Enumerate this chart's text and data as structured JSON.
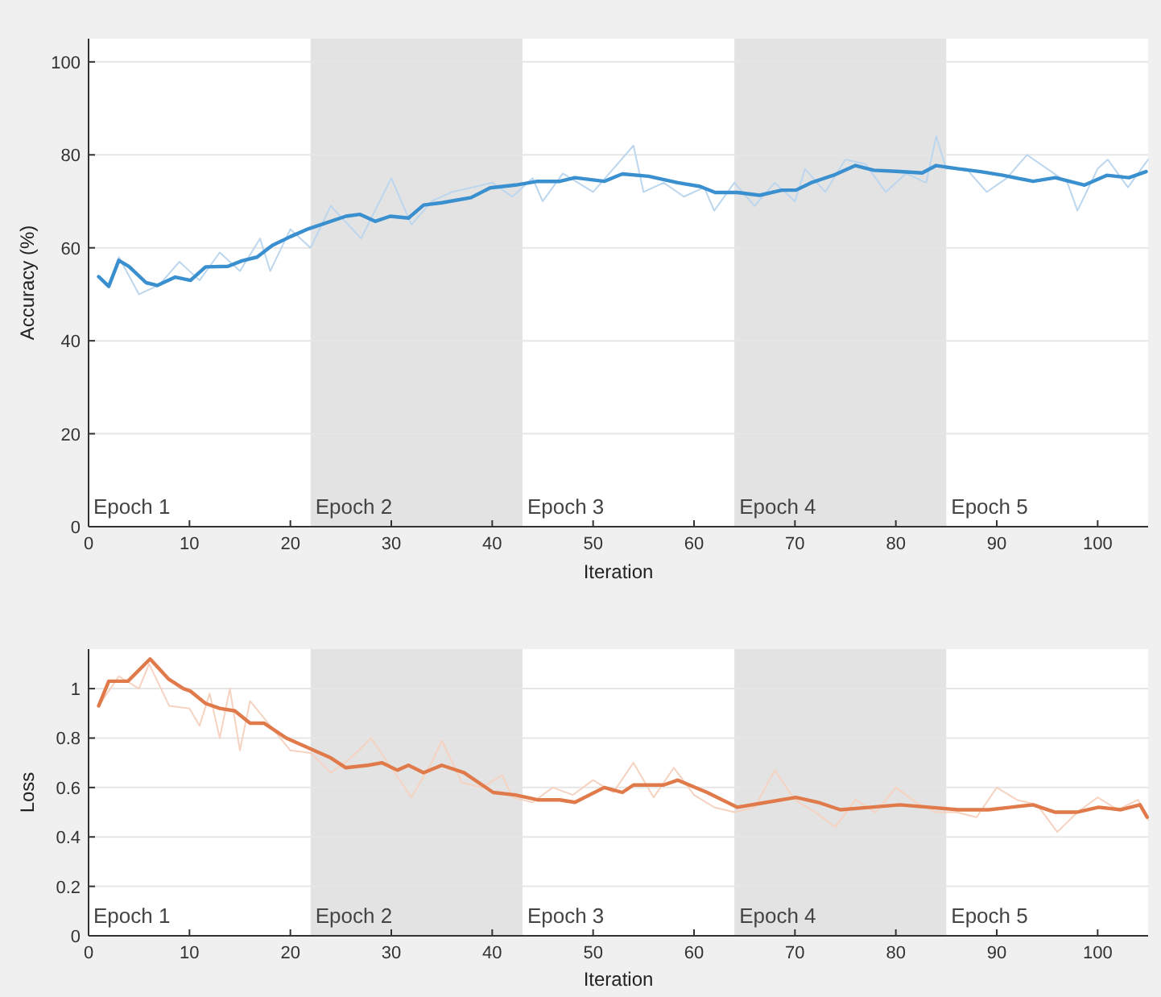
{
  "chart_data": [
    {
      "type": "line",
      "xlabel": "Iteration",
      "ylabel": "Accuracy (%)",
      "xlim": [
        0,
        105
      ],
      "ylim": [
        0,
        105
      ],
      "xticks": [
        0,
        10,
        20,
        30,
        40,
        50,
        60,
        70,
        80,
        90,
        100
      ],
      "yticks": [
        0,
        20,
        40,
        60,
        80,
        100
      ],
      "grid": "y",
      "line_style": "solid",
      "bands": [
        {
          "axis": "x",
          "from": 22,
          "to": 43,
          "label": "Epoch 2",
          "color": "#e3e3e3"
        },
        {
          "axis": "x",
          "from": 64,
          "to": 85,
          "label": "Epoch 4",
          "color": "#e3e3e3"
        }
      ],
      "annotations": [
        "Epoch 1",
        "Epoch 3",
        "Epoch 5"
      ],
      "series": [
        {
          "color": "#bcd6ee",
          "x": [
            1,
            2,
            3,
            5,
            7,
            9,
            11,
            13,
            15,
            17,
            18,
            20,
            21,
            22,
            24,
            27,
            30,
            32,
            34,
            36,
            38,
            40,
            42,
            44,
            45,
            47,
            50,
            52,
            54,
            55,
            57,
            59,
            61,
            62,
            64,
            66,
            68,
            70,
            71,
            73,
            75,
            77,
            79,
            81,
            83,
            84,
            85,
            87,
            89,
            91,
            93,
            95,
            97,
            98,
            100,
            101,
            103,
            105
          ],
          "values": [
            54,
            52,
            58,
            50,
            52,
            57,
            53,
            59,
            55,
            62,
            55,
            64,
            62,
            60,
            69,
            62,
            75,
            65,
            70,
            72,
            73,
            74,
            71,
            75,
            70,
            76,
            72,
            77,
            82,
            72,
            74,
            71,
            73,
            68,
            74,
            69,
            74,
            70,
            77,
            72,
            79,
            78,
            72,
            76,
            74,
            84,
            77,
            77,
            72,
            75,
            80,
            77,
            74,
            68,
            77,
            79,
            73,
            79
          ]
        },
        {
          "color": "#3a8fcf",
          "x": [
            1,
            2,
            3,
            4,
            5.7,
            6.8,
            8.6,
            10.1,
            11.6,
            13.8,
            15.2,
            16.7,
            18.2,
            20,
            21.8,
            25.5,
            26.9,
            28.4,
            29.9,
            31.7,
            33.2,
            35,
            37.9,
            39.8,
            42.3,
            44.5,
            46.7,
            48.2,
            51.1,
            52.9,
            55.5,
            58.4,
            60.6,
            62.1,
            64.3,
            66.5,
            68.7,
            70.1,
            71.6,
            73.8,
            76,
            77.8,
            80.4,
            82.6,
            84,
            86.2,
            88.4,
            90.6,
            93.6,
            95.8,
            98.7,
            100.9,
            103.1,
            104.8
          ],
          "values": [
            53.8,
            51.7,
            57.3,
            56,
            52.5,
            51.9,
            53.7,
            53,
            55.9,
            56,
            57.2,
            58,
            60.5,
            62.4,
            64.1,
            66.8,
            67.2,
            65.7,
            66.8,
            66.4,
            69.2,
            69.7,
            70.8,
            72.9,
            73.5,
            74.3,
            74.3,
            75.1,
            74.3,
            75.9,
            75.4,
            74,
            73.2,
            71.9,
            71.9,
            71.3,
            72.4,
            72.4,
            74,
            75.6,
            77.7,
            76.7,
            76.4,
            76.1,
            77.7,
            77,
            76.4,
            75.6,
            74.3,
            75.1,
            73.5,
            75.6,
            75.1,
            76.4
          ]
        }
      ]
    },
    {
      "type": "line",
      "xlabel": "Iteration",
      "ylabel": "Loss",
      "xlim": [
        0,
        105
      ],
      "ylim": [
        0,
        1.16
      ],
      "xticks": [
        0,
        10,
        20,
        30,
        40,
        50,
        60,
        70,
        80,
        90,
        100
      ],
      "yticks": [
        0,
        0.2,
        0.4,
        0.6,
        0.8,
        1
      ],
      "grid": "y",
      "line_style": "solid",
      "bands": [
        {
          "axis": "x",
          "from": 22,
          "to": 43,
          "label": "Epoch 2",
          "color": "#e3e3e3"
        },
        {
          "axis": "x",
          "from": 64,
          "to": 85,
          "label": "Epoch 4",
          "color": "#e3e3e3"
        }
      ],
      "annotations": [
        "Epoch 1",
        "Epoch 3",
        "Epoch 5"
      ],
      "series": [
        {
          "color": "#f6d2c0",
          "x": [
            1,
            3,
            5,
            6,
            8,
            10,
            11,
            12,
            13,
            14,
            15,
            16,
            18,
            20,
            22,
            24,
            26,
            28,
            30,
            32,
            34,
            35,
            37,
            39,
            41,
            42,
            44,
            46,
            48,
            50,
            52,
            54,
            56,
            58,
            60,
            62,
            64,
            66,
            68,
            70,
            72,
            74,
            76,
            78,
            80,
            82,
            84,
            86,
            88,
            90,
            92,
            94,
            96,
            98,
            100,
            102,
            104,
            105
          ],
          "values": [
            0.93,
            1.05,
            1.0,
            1.1,
            0.93,
            0.92,
            0.85,
            0.98,
            0.8,
            1.0,
            0.75,
            0.95,
            0.85,
            0.75,
            0.74,
            0.66,
            0.72,
            0.8,
            0.68,
            0.56,
            0.7,
            0.79,
            0.62,
            0.6,
            0.65,
            0.56,
            0.54,
            0.6,
            0.57,
            0.63,
            0.58,
            0.7,
            0.56,
            0.68,
            0.57,
            0.52,
            0.5,
            0.52,
            0.67,
            0.55,
            0.5,
            0.44,
            0.55,
            0.5,
            0.6,
            0.54,
            0.5,
            0.5,
            0.48,
            0.6,
            0.55,
            0.53,
            0.42,
            0.5,
            0.56,
            0.51,
            0.55,
            0.47
          ]
        },
        {
          "color": "#e07a4a",
          "x": [
            1,
            2,
            3.9,
            6.1,
            7.9,
            9.4,
            10.1,
            11.6,
            13,
            14.5,
            16,
            17.4,
            19.6,
            21.8,
            24,
            25.5,
            27.7,
            29.1,
            30.6,
            31.7,
            33.2,
            35,
            37.2,
            40.1,
            42.3,
            44.5,
            46.7,
            48.2,
            51.1,
            52.9,
            54,
            57,
            58.4,
            61.3,
            64.3,
            67.2,
            70.1,
            72.3,
            74.5,
            77.5,
            80.4,
            83.3,
            86.2,
            89.2,
            91.4,
            93.6,
            95.8,
            97.9,
            100.1,
            102.3,
            104.2,
            104.9
          ],
          "values": [
            0.93,
            1.03,
            1.03,
            1.12,
            1.04,
            1.0,
            0.99,
            0.94,
            0.92,
            0.91,
            0.86,
            0.86,
            0.8,
            0.76,
            0.72,
            0.68,
            0.69,
            0.7,
            0.67,
            0.69,
            0.66,
            0.69,
            0.66,
            0.58,
            0.57,
            0.55,
            0.55,
            0.54,
            0.6,
            0.58,
            0.61,
            0.61,
            0.63,
            0.58,
            0.52,
            0.54,
            0.56,
            0.54,
            0.51,
            0.52,
            0.53,
            0.52,
            0.51,
            0.51,
            0.52,
            0.53,
            0.5,
            0.5,
            0.52,
            0.51,
            0.53,
            0.48
          ]
        }
      ]
    }
  ]
}
